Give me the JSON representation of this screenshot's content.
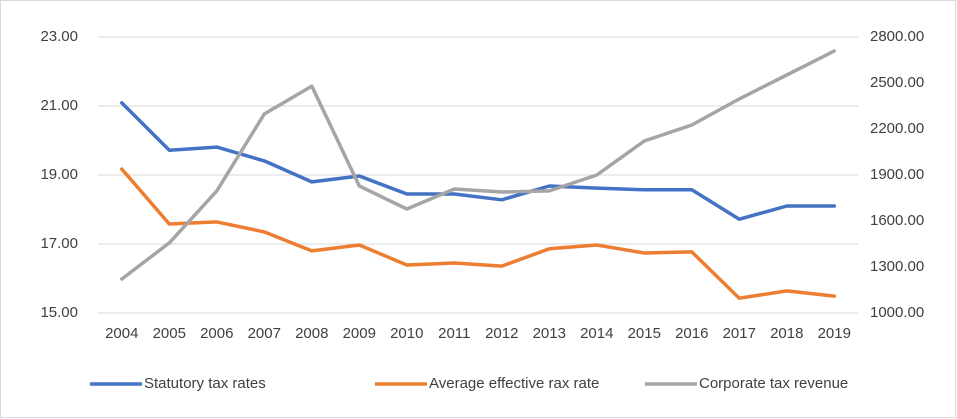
{
  "chart_data": {
    "type": "line",
    "categories": [
      "2004",
      "2005",
      "2006",
      "2007",
      "2008",
      "2009",
      "2010",
      "2011",
      "2012",
      "2013",
      "2014",
      "2015",
      "2016",
      "2017",
      "2018",
      "2019"
    ],
    "series": [
      {
        "name": "Statutory tax rates",
        "color": "#4472c4",
        "values": [
          21.09,
          19.72,
          19.81,
          19.41,
          18.8,
          18.97,
          18.45,
          18.45,
          18.28,
          18.68,
          18.62,
          18.57,
          18.57,
          17.72,
          18.1,
          18.1
        ]
      },
      {
        "name": "Average effective rax rate",
        "color": "#ed7d31",
        "values": [
          19.17,
          17.58,
          17.64,
          17.35,
          16.8,
          16.97,
          16.39,
          16.45,
          16.36,
          16.86,
          16.97,
          16.74,
          16.77,
          15.43,
          15.64,
          15.49
        ]
      },
      {
        "name": "Corporate tax revenue",
        "color": "#a5a5a5",
        "axis": "y2",
        "values": [
          1222,
          1457,
          1796,
          2298,
          2480,
          1828,
          1678,
          1809,
          1789,
          1796,
          1900,
          2122,
          2226,
          2396,
          2552,
          2709
        ]
      }
    ],
    "ylim": [
      15,
      23
    ],
    "yticks": [
      {
        "value": 15,
        "label": "15.00"
      },
      {
        "value": 17,
        "label": "17.00"
      },
      {
        "value": 19,
        "label": "19.00"
      },
      {
        "value": 21,
        "label": "21.00"
      },
      {
        "value": 23,
        "label": "23.00"
      }
    ],
    "y2lim": [
      1000,
      2800
    ],
    "y2ticks": [
      {
        "value": 1000,
        "label": "1000.00"
      },
      {
        "value": 1300,
        "label": "1300.00"
      },
      {
        "value": 1600,
        "label": "1600.00"
      },
      {
        "value": 1900,
        "label": "1900.00"
      },
      {
        "value": 2200,
        "label": "2200.00"
      },
      {
        "value": 2500,
        "label": "2500.00"
      },
      {
        "value": 2800,
        "label": "2800.00"
      }
    ],
    "grid": true,
    "legend": "bottom"
  }
}
